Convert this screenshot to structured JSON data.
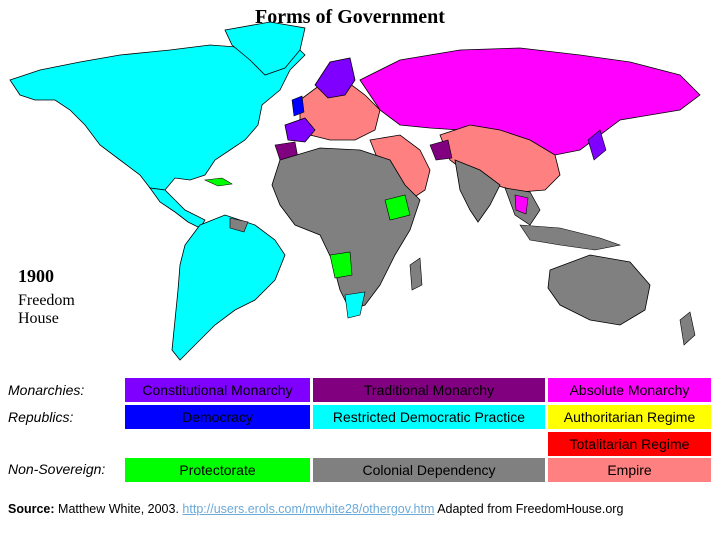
{
  "title": "Forms of Government",
  "year": "1900",
  "credit_line1": "Freedom",
  "credit_line2": "House",
  "legend": {
    "row_labels": {
      "monarchies": "Monarchies:",
      "republics": "Republics:",
      "non_sovereign": "Non-Sovereign:"
    },
    "items": {
      "constitutional_monarchy": {
        "label": "Constitutional Monarchy",
        "color": "#8000ff"
      },
      "traditional_monarchy": {
        "label": "Traditional Monarchy",
        "color": "#800080"
      },
      "absolute_monarchy": {
        "label": "Absolute Monarchy",
        "color": "#ff00ff"
      },
      "democracy": {
        "label": "Democracy",
        "color": "#0000ff"
      },
      "restricted_democratic_practice": {
        "label": "Restricted Democratic Practice",
        "color": "#00ffff"
      },
      "authoritarian_regime": {
        "label": "Authoritarian Regime",
        "color": "#ffff00"
      },
      "totalitarian_regime": {
        "label": "Totalitarian Regime",
        "color": "#ff0000"
      },
      "protectorate": {
        "label": "Protectorate",
        "color": "#00ff00"
      },
      "colonial_dependency": {
        "label": "Colonial Dependency",
        "color": "#808080"
      },
      "empire": {
        "label": "Empire",
        "color": "#ff8080"
      }
    }
  },
  "source": {
    "label": "Source:",
    "text": "Matthew White, 2003.",
    "link": "http://users.erols.com/mwhite28/othergov.htm",
    "suffix": "Adapted from FreedomHouse.org"
  }
}
